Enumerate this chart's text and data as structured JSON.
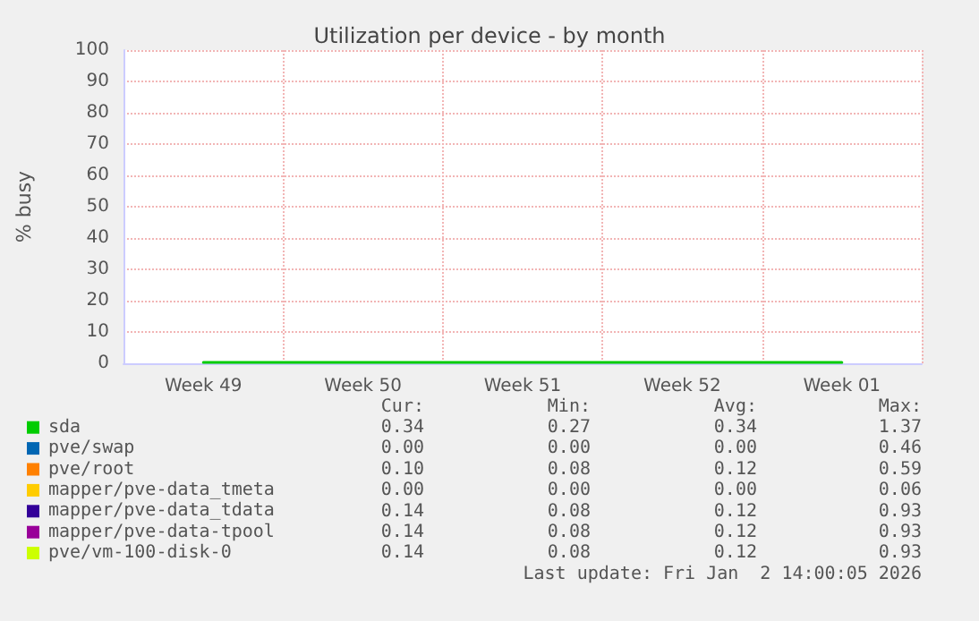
{
  "chart_data": {
    "type": "line",
    "title": "Utilization per device - by month",
    "ylabel": "% busy",
    "categories": [
      "Week 49",
      "Week 50",
      "Week 51",
      "Week 52",
      "Week 01"
    ],
    "ylim": [
      0,
      100
    ],
    "yticks": [
      0,
      10,
      20,
      30,
      40,
      50,
      60,
      70,
      80,
      90,
      100
    ],
    "grid": true,
    "legend": "bottom",
    "marker": "none",
    "line_style": "solid",
    "series": [
      {
        "name": "sda",
        "color": "#00cc00",
        "values": [
          0.3,
          0.3,
          0.3,
          0.3,
          0.3
        ]
      },
      {
        "name": "pve/swap",
        "color": "#0066b3",
        "values": [
          null,
          null,
          null,
          null,
          null
        ]
      },
      {
        "name": "pve/root",
        "color": "#ff8000",
        "values": [
          null,
          null,
          null,
          null,
          null
        ]
      },
      {
        "name": "mapper/pve-data_tmeta",
        "color": "#ffcc00",
        "values": [
          null,
          null,
          null,
          null,
          null
        ]
      },
      {
        "name": "mapper/pve-data_tdata",
        "color": "#330099",
        "values": [
          null,
          null,
          null,
          null,
          null
        ]
      },
      {
        "name": "mapper/pve-data-tpool",
        "color": "#990099",
        "values": [
          null,
          null,
          null,
          null,
          null
        ]
      },
      {
        "name": "pve/vm-100-disk-0",
        "color": "#ccff00",
        "values": [
          null,
          null,
          null,
          null,
          null
        ]
      }
    ],
    "annotations": [
      "Cur:",
      "Min:",
      "Avg:",
      "Max:",
      "0.34",
      "0.27",
      "0.34",
      "1.37",
      "0.00",
      "0.00",
      "0.00",
      "0.46",
      "0.10",
      "0.08",
      "0.12",
      "0.59",
      "0.00",
      "0.00",
      "0.00",
      "0.06",
      "0.14",
      "0.08",
      "0.12",
      "0.93",
      "0.14",
      "0.08",
      "0.12",
      "0.93",
      "0.14",
      "0.08",
      "0.12",
      "0.93",
      "Last update: Fri Jan  2 14:00:05 2026"
    ]
  }
}
